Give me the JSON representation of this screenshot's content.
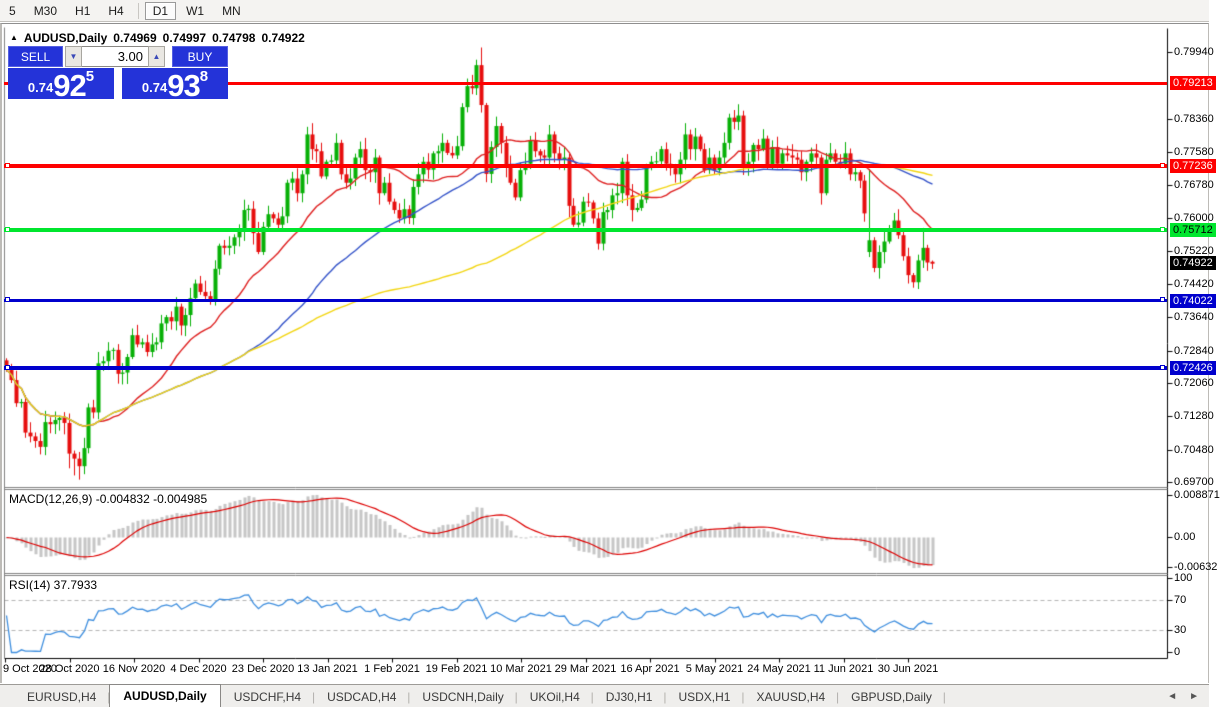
{
  "toolbar": {
    "timeframes": [
      {
        "label": "5",
        "active": false,
        "sep_after": false
      },
      {
        "label": "M30",
        "active": false,
        "sep_after": false
      },
      {
        "label": "H1",
        "active": false,
        "sep_after": false
      },
      {
        "label": "H4",
        "active": false,
        "sep_after": true
      },
      {
        "label": "D1",
        "active": true,
        "sep_after": false
      },
      {
        "label": "W1",
        "active": false,
        "sep_after": false
      },
      {
        "label": "MN",
        "active": false,
        "sep_after": false
      }
    ]
  },
  "symbol_header": {
    "collapse_icon": "▲",
    "title": "AUDUSD,Daily",
    "open": "0.74969",
    "high": "0.74997",
    "low": "0.74798",
    "close": "0.74922"
  },
  "trade_panel": {
    "sell_label": "SELL",
    "buy_label": "BUY",
    "volume": "3.00",
    "spin_down_icon": "▼",
    "spin_up_icon": "▲",
    "bid": {
      "prefix": "0.74",
      "big": "92",
      "sup": "5"
    },
    "ask": {
      "prefix": "0.74",
      "big": "93",
      "sup": "8"
    }
  },
  "colors": {
    "bull": "#07b007",
    "bear": "#e60e0e",
    "ma_fast": "#de2020",
    "ma_mid": "#3352c8",
    "ma_slow": "#f2d511",
    "macd_hist": "#c6c6c6",
    "macd_signal": "#dd0000",
    "rsi_line": "#3e8ede",
    "level_dash": "#b4b4b4",
    "panel_blue": "#2433d8"
  },
  "chart_data": {
    "type": "candlestick",
    "symbol": "AUDUSD",
    "timeframe": "Daily",
    "ohlc_current": {
      "open": 0.74969,
      "high": 0.74997,
      "low": 0.74798,
      "close": 0.74922
    },
    "x_labels": [
      "9 Oct 2020",
      "28 Oct 2020",
      "16 Nov 2020",
      "4 Dec 2020",
      "23 Dec 2020",
      "13 Jan 2021",
      "1 Feb 2021",
      "19 Feb 2021",
      "10 Mar 2021",
      "29 Mar 2021",
      "16 Apr 2021",
      "5 May 2021",
      "24 May 2021",
      "11 Jun 2021",
      "30 Jun 2021"
    ],
    "y_ticks": [
      {
        "label": "0.79940",
        "value": 0.7994
      },
      {
        "label": "0.78360",
        "value": 0.7836
      },
      {
        "label": "0.77580",
        "value": 0.7758
      },
      {
        "label": "0.76780",
        "value": 0.7678
      },
      {
        "label": "0.76000",
        "value": 0.76
      },
      {
        "label": "0.75220",
        "value": 0.7522
      },
      {
        "label": "0.74420",
        "value": 0.7442
      },
      {
        "label": "0.73640",
        "value": 0.7364
      },
      {
        "label": "0.72840",
        "value": 0.7284
      },
      {
        "label": "0.72060",
        "value": 0.7206
      },
      {
        "label": "0.71280",
        "value": 0.7128
      },
      {
        "label": "0.70480",
        "value": 0.7048
      },
      {
        "label": "0.69700",
        "value": 0.697
      }
    ],
    "hlines": [
      {
        "label": "0.79213",
        "value": 0.79213,
        "color": "#fe0000",
        "text": "#ffffff",
        "width": 3,
        "handles": false
      },
      {
        "label": "0.77236",
        "value": 0.77236,
        "color": "#fe0000",
        "text": "#ffffff",
        "width": 4,
        "handles": true
      },
      {
        "label": "0.75712",
        "value": 0.75712,
        "color": "#00e62e",
        "text": "#000000",
        "width": 4,
        "handles": true
      },
      {
        "label": "0.74022",
        "value": 0.74022,
        "color": "#0000cd",
        "text": "#ffffff",
        "width": 3,
        "handles": true
      },
      {
        "label": "0.72426",
        "value": 0.72426,
        "color": "#0000cd",
        "text": "#ffffff",
        "width": 4,
        "handles": true
      }
    ],
    "current_price_label": {
      "label": "0.74922",
      "value": 0.74922,
      "bg": "#000000",
      "text": "#ffffff"
    },
    "moving_averages": [
      {
        "period": 20,
        "color_key": "ma_fast"
      },
      {
        "period": 50,
        "color_key": "ma_mid"
      },
      {
        "period": 100,
        "color_key": "ma_slow"
      }
    ],
    "candles": {
      "first_open": 0.7262,
      "closes": [
        0.724,
        0.7215,
        0.716,
        0.7163,
        0.709,
        0.7081,
        0.707,
        0.7056,
        0.7115,
        0.711,
        0.712,
        0.7125,
        0.7113,
        0.704,
        0.7028,
        0.701,
        0.7053,
        0.715,
        0.7138,
        0.7255,
        0.726,
        0.7285,
        0.7287,
        0.723,
        0.7233,
        0.727,
        0.7322,
        0.73,
        0.7305,
        0.7282,
        0.73,
        0.7305,
        0.735,
        0.7365,
        0.7355,
        0.739,
        0.7345,
        0.737,
        0.741,
        0.7445,
        0.7425,
        0.7415,
        0.7405,
        0.748,
        0.7535,
        0.753,
        0.7535,
        0.7555,
        0.757,
        0.762,
        0.7623,
        0.7565,
        0.752,
        0.758,
        0.761,
        0.76,
        0.7585,
        0.7605,
        0.7685,
        0.7695,
        0.766,
        0.7705,
        0.78,
        0.7765,
        0.776,
        0.77,
        0.7735,
        0.7738,
        0.778,
        0.7705,
        0.7685,
        0.7695,
        0.7745,
        0.7765,
        0.7715,
        0.771,
        0.7745,
        0.766,
        0.7685,
        0.764,
        0.762,
        0.76,
        0.7622,
        0.7601,
        0.7675,
        0.7705,
        0.7735,
        0.7716,
        0.7755,
        0.776,
        0.778,
        0.7756,
        0.775,
        0.7772,
        0.7865,
        0.7915,
        0.791,
        0.7965,
        0.787,
        0.7706,
        0.777,
        0.782,
        0.778,
        0.7725,
        0.7685,
        0.765,
        0.7715,
        0.773,
        0.7785,
        0.776,
        0.775,
        0.7745,
        0.78,
        0.7755,
        0.774,
        0.7745,
        0.763,
        0.7585,
        0.759,
        0.764,
        0.7638,
        0.76,
        0.754,
        0.7615,
        0.762,
        0.7655,
        0.766,
        0.7735,
        0.7655,
        0.762,
        0.7625,
        0.7645,
        0.7725,
        0.7735,
        0.7736,
        0.7765,
        0.773,
        0.772,
        0.7705,
        0.774,
        0.78,
        0.7765,
        0.7795,
        0.7765,
        0.7715,
        0.7745,
        0.7715,
        0.7745,
        0.778,
        0.784,
        0.783,
        0.7845,
        0.7725,
        0.7735,
        0.7775,
        0.7765,
        0.779,
        0.7725,
        0.777,
        0.773,
        0.7755,
        0.775,
        0.7745,
        0.774,
        0.771,
        0.7735,
        0.7755,
        0.7745,
        0.766,
        0.774,
        0.7755,
        0.7735,
        0.773,
        0.7755,
        0.7705,
        0.771,
        0.769,
        0.7612,
        0.7548,
        0.7482,
        0.752,
        0.7545,
        0.7575,
        0.7595,
        0.756,
        0.751,
        0.7465,
        0.7448,
        0.75,
        0.753,
        0.7495,
        0.74922
      ],
      "overrides": {
        "13": {
          "l": 0.7005
        },
        "14": {
          "l": 0.6988
        },
        "15": {
          "l": 0.6978
        },
        "16": {
          "l": 0.6991
        },
        "97": {
          "h": 0.7978
        },
        "98": {
          "h": 0.8007
        },
        "178": {
          "o": 0.752,
          "h": 0.7718,
          "l": 0.7508
        },
        "179": {
          "l": 0.7472
        },
        "186": {
          "l": 0.7445
        },
        "187": {
          "l": 0.7435
        },
        "189": {
          "h": 0.7577
        },
        "191": {
          "o": 0.74969,
          "h": 0.74997,
          "l": 0.74798
        }
      }
    },
    "macd": {
      "label": "MACD(12,26,9) -0.004832 -0.004985",
      "params": [
        12,
        26,
        9
      ],
      "main_value": -0.004832,
      "signal_value": -0.004985,
      "y_ticks": [
        {
          "label": "0.008871",
          "value": 0.008871
        },
        {
          "label": "0.00",
          "value": 0
        },
        {
          "label": "-0.00632",
          "value": -0.00632
        }
      ]
    },
    "rsi": {
      "label": "RSI(14) 37.7933",
      "period": 14,
      "value": 37.7933,
      "levels": [
        70,
        30
      ],
      "y_ticks": [
        {
          "label": "100",
          "value": 100
        },
        {
          "label": "70",
          "value": 70
        },
        {
          "label": "30",
          "value": 30
        },
        {
          "label": "0",
          "value": 0
        }
      ]
    }
  },
  "tabbar": {
    "tabs": [
      {
        "label": "EURUSD,H4",
        "active": false
      },
      {
        "label": "AUDUSD,Daily",
        "active": true
      },
      {
        "label": "USDCHF,H4",
        "active": false
      },
      {
        "label": "USDCAD,H4",
        "active": false
      },
      {
        "label": "USDCNH,Daily",
        "active": false
      },
      {
        "label": "UKOil,H4",
        "active": false
      },
      {
        "label": "DJ30,H1",
        "active": false
      },
      {
        "label": "USDX,H1",
        "active": false
      },
      {
        "label": "XAUUSD,H4",
        "active": false
      },
      {
        "label": "GBPUSD,Daily",
        "active": false
      }
    ],
    "scroll_left_icon": "◄",
    "scroll_right_icon": "►"
  }
}
